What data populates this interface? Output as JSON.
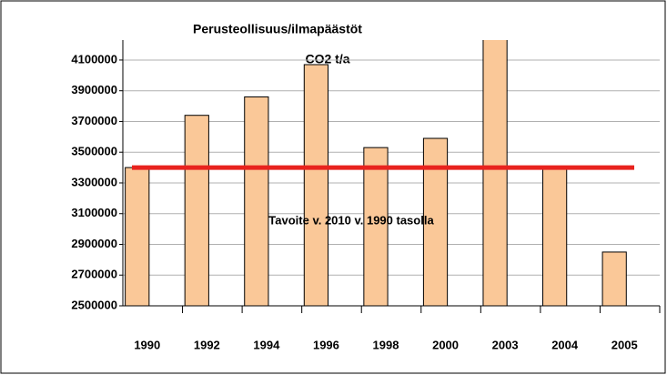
{
  "chart_data": {
    "type": "bar",
    "title": "Perusteollisuus/ilmapäästöt",
    "subtitle": "CO2 t/a",
    "categories": [
      "1990",
      "1992",
      "1994",
      "1996",
      "1998",
      "2000",
      "2003",
      "2004",
      "2005"
    ],
    "values": [
      3400000,
      3740000,
      3860000,
      4070000,
      3530000,
      3590000,
      4250000,
      3390000,
      2850000
    ],
    "color": "#fac898",
    "ylim": [
      2500000,
      4230000
    ],
    "yticks": [
      2500000,
      2700000,
      2900000,
      3100000,
      3300000,
      3500000,
      3700000,
      3900000,
      4100000
    ],
    "grid": true,
    "reference": {
      "value": 3400000,
      "label": "Tavoite v. 2010 v. 1990 tasolla",
      "color": "#e8231e"
    }
  }
}
